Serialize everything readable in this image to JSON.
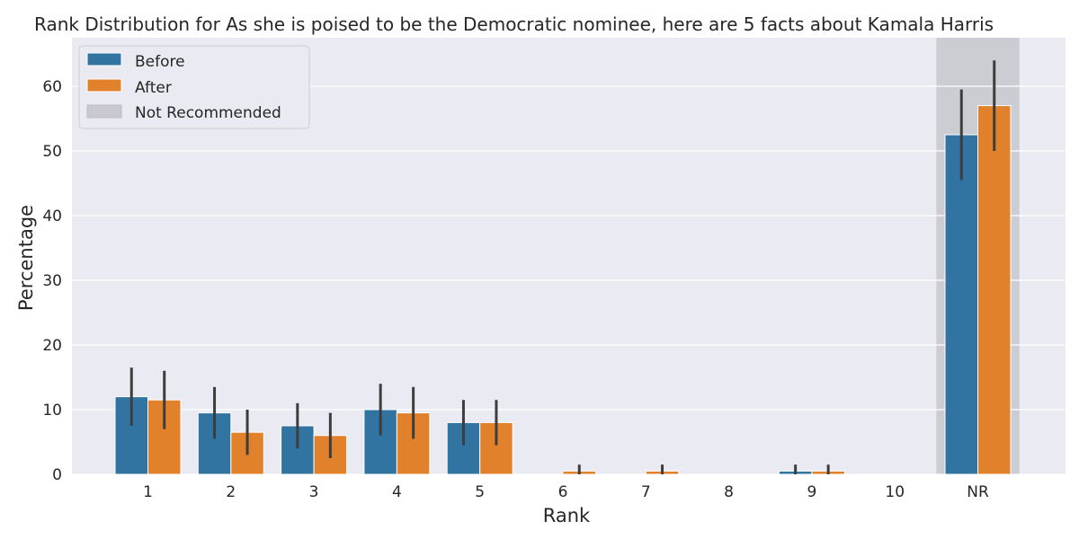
{
  "chart_data": {
    "type": "bar",
    "title": "Rank Distribution for As she is poised to be the Democratic nominee, here are 5 facts about Kamala Harris",
    "xlabel": "Rank",
    "ylabel": "Percentage",
    "categories": [
      "1",
      "2",
      "3",
      "4",
      "5",
      "6",
      "7",
      "8",
      "9",
      "10",
      "NR"
    ],
    "ylim": [
      0,
      67.5
    ],
    "yticks": [
      0,
      10,
      20,
      30,
      40,
      50,
      60
    ],
    "grid": true,
    "legend_position": "top-left",
    "highlight": {
      "category": "NR",
      "label": "Not Recommended",
      "color": "#c9c9cf"
    },
    "series": [
      {
        "name": "Before",
        "color": "#3274a1",
        "values": [
          12.0,
          9.5,
          7.5,
          10.0,
          8.0,
          0.0,
          0.0,
          0.0,
          0.5,
          0.0,
          52.5
        ],
        "err_low": [
          7.5,
          5.5,
          4.0,
          6.0,
          4.5,
          0.0,
          0.0,
          0.0,
          0.0,
          0.0,
          45.5
        ],
        "err_high": [
          16.5,
          13.5,
          11.0,
          14.0,
          11.5,
          0.0,
          0.0,
          0.0,
          1.5,
          0.0,
          59.5
        ]
      },
      {
        "name": "After",
        "color": "#e1812c",
        "values": [
          11.5,
          6.5,
          6.0,
          9.5,
          8.0,
          0.5,
          0.5,
          0.0,
          0.5,
          0.0,
          57.0
        ],
        "err_low": [
          7.0,
          3.0,
          2.5,
          5.5,
          4.5,
          0.0,
          0.0,
          0.0,
          0.0,
          0.0,
          50.0
        ],
        "err_high": [
          16.0,
          10.0,
          9.5,
          13.5,
          11.5,
          1.5,
          1.5,
          0.0,
          1.5,
          0.0,
          64.0
        ]
      }
    ]
  }
}
